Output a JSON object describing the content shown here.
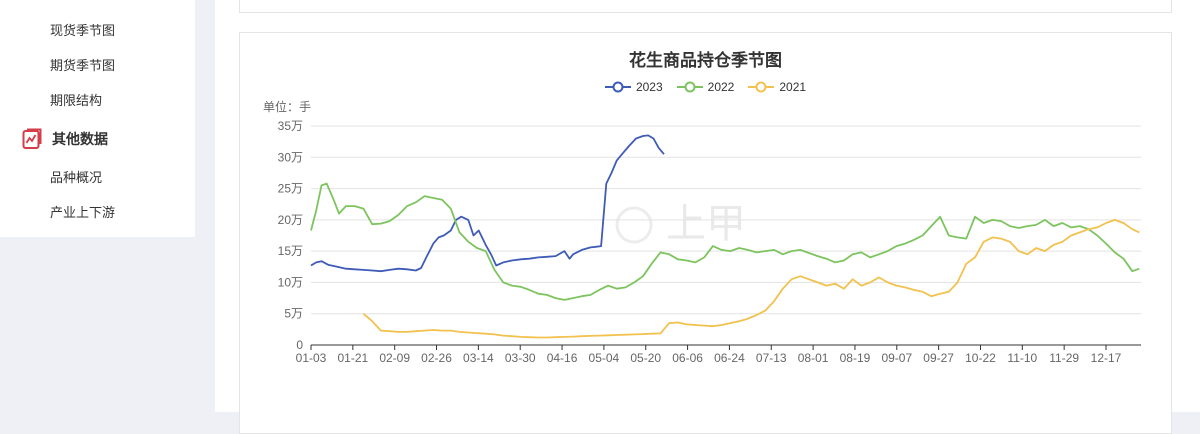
{
  "sidebar": {
    "items_top": [
      "现货季节图",
      "期货季节图",
      "期限结构"
    ],
    "group_label": "其他数据",
    "items_bottom": [
      "品种概况",
      "产业上下游"
    ]
  },
  "chart": {
    "watermark": "上甲"
  },
  "chart_data": {
    "type": "line",
    "title": "花生商品持仓季节图",
    "unit_label": "单位：手",
    "xlabel": "",
    "ylabel": "",
    "ylim": [
      0,
      350000
    ],
    "y_ticks": [
      "0",
      "5万",
      "10万",
      "15万",
      "20万",
      "25万",
      "30万",
      "35万"
    ],
    "x_tick_labels": [
      "01-03",
      "01-21",
      "02-09",
      "02-26",
      "03-14",
      "03-30",
      "04-16",
      "05-04",
      "05-20",
      "06-06",
      "06-24",
      "07-13",
      "08-01",
      "08-19",
      "09-07",
      "09-27",
      "10-22",
      "11-10",
      "11-29",
      "12-17"
    ],
    "grid": true,
    "legend_position": "top-center",
    "series": [
      {
        "name": "2023",
        "color": "#3e5bb8",
        "points": [
          [
            0,
            127000
          ],
          [
            0.3,
            132000
          ],
          [
            0.6,
            134000
          ],
          [
            1,
            128000
          ],
          [
            1.5,
            125000
          ],
          [
            2,
            122000
          ],
          [
            2.5,
            121000
          ],
          [
            3,
            120000
          ],
          [
            3.5,
            119000
          ],
          [
            4,
            118000
          ],
          [
            4.5,
            120000
          ],
          [
            5,
            122000
          ],
          [
            5.5,
            121000
          ],
          [
            6,
            119000
          ],
          [
            6.3,
            123000
          ],
          [
            6.6,
            140000
          ],
          [
            7,
            162000
          ],
          [
            7.3,
            172000
          ],
          [
            7.6,
            175000
          ],
          [
            8,
            183000
          ],
          [
            8.3,
            200000
          ],
          [
            8.6,
            205000
          ],
          [
            9,
            200000
          ],
          [
            9.3,
            175000
          ],
          [
            9.6,
            183000
          ],
          [
            10,
            160000
          ],
          [
            10.3,
            145000
          ],
          [
            10.6,
            127000
          ],
          [
            11,
            132000
          ],
          [
            11.5,
            135000
          ],
          [
            12,
            137000
          ],
          [
            12.5,
            138000
          ],
          [
            13,
            140000
          ],
          [
            13.5,
            141000
          ],
          [
            14,
            142000
          ],
          [
            14.5,
            150000
          ],
          [
            14.8,
            138000
          ],
          [
            15,
            145000
          ],
          [
            15.5,
            152000
          ],
          [
            16,
            156000
          ],
          [
            16.3,
            157000
          ],
          [
            16.6,
            158000
          ],
          [
            16.9,
            258000
          ],
          [
            17.2,
            275000
          ],
          [
            17.5,
            295000
          ],
          [
            17.8,
            305000
          ],
          [
            18.2,
            318000
          ],
          [
            18.6,
            330000
          ],
          [
            19,
            334000
          ],
          [
            19.3,
            335000
          ],
          [
            19.6,
            330000
          ],
          [
            19.9,
            315000
          ],
          [
            20.2,
            305000
          ]
        ]
      },
      {
        "name": "2022",
        "color": "#7dc45f",
        "points": [
          [
            0,
            183000
          ],
          [
            0.3,
            215000
          ],
          [
            0.6,
            255000
          ],
          [
            0.9,
            258000
          ],
          [
            1.3,
            232000
          ],
          [
            1.6,
            210000
          ],
          [
            2,
            222000
          ],
          [
            2.5,
            222000
          ],
          [
            3,
            218000
          ],
          [
            3.5,
            193000
          ],
          [
            4,
            194000
          ],
          [
            4.5,
            198000
          ],
          [
            5,
            208000
          ],
          [
            5.5,
            222000
          ],
          [
            6,
            228000
          ],
          [
            6.5,
            238000
          ],
          [
            7,
            235000
          ],
          [
            7.5,
            232000
          ],
          [
            8,
            218000
          ],
          [
            8.5,
            180000
          ],
          [
            9,
            165000
          ],
          [
            9.5,
            155000
          ],
          [
            10,
            150000
          ],
          [
            10.5,
            120000
          ],
          [
            11,
            100000
          ],
          [
            11.5,
            95000
          ],
          [
            12,
            93000
          ],
          [
            12.5,
            88000
          ],
          [
            13,
            82000
          ],
          [
            13.5,
            80000
          ],
          [
            14,
            75000
          ],
          [
            14.5,
            72000
          ],
          [
            15,
            75000
          ],
          [
            15.5,
            78000
          ],
          [
            16,
            80000
          ],
          [
            16.5,
            88000
          ],
          [
            17,
            95000
          ],
          [
            17.5,
            90000
          ],
          [
            18,
            92000
          ],
          [
            18.5,
            100000
          ],
          [
            19,
            110000
          ],
          [
            19.5,
            130000
          ],
          [
            20,
            148000
          ],
          [
            20.5,
            145000
          ],
          [
            21,
            137000
          ],
          [
            21.5,
            135000
          ],
          [
            22,
            132000
          ],
          [
            22.5,
            140000
          ],
          [
            23,
            158000
          ],
          [
            23.5,
            152000
          ],
          [
            24,
            150000
          ],
          [
            24.5,
            155000
          ],
          [
            25,
            152000
          ],
          [
            25.5,
            148000
          ],
          [
            26,
            150000
          ],
          [
            26.5,
            152000
          ],
          [
            27,
            145000
          ],
          [
            27.5,
            150000
          ],
          [
            28,
            152000
          ],
          [
            28.5,
            147000
          ],
          [
            29,
            142000
          ],
          [
            29.5,
            138000
          ],
          [
            30,
            132000
          ],
          [
            30.5,
            135000
          ],
          [
            31,
            145000
          ],
          [
            31.5,
            148000
          ],
          [
            32,
            140000
          ],
          [
            32.5,
            145000
          ],
          [
            33,
            150000
          ],
          [
            33.5,
            158000
          ],
          [
            34,
            162000
          ],
          [
            34.5,
            168000
          ],
          [
            35,
            175000
          ],
          [
            35.5,
            190000
          ],
          [
            36,
            205000
          ],
          [
            36.5,
            175000
          ],
          [
            37,
            172000
          ],
          [
            37.5,
            170000
          ],
          [
            38,
            205000
          ],
          [
            38.5,
            195000
          ],
          [
            39,
            200000
          ],
          [
            39.5,
            198000
          ],
          [
            40,
            190000
          ],
          [
            40.5,
            187000
          ],
          [
            41,
            190000
          ],
          [
            41.5,
            192000
          ],
          [
            42,
            200000
          ],
          [
            42.5,
            190000
          ],
          [
            43,
            195000
          ],
          [
            43.5,
            188000
          ],
          [
            44,
            190000
          ],
          [
            44.5,
            185000
          ],
          [
            45,
            175000
          ],
          [
            45.5,
            162000
          ],
          [
            46,
            148000
          ],
          [
            46.5,
            138000
          ],
          [
            47,
            118000
          ],
          [
            47.4,
            122000
          ]
        ]
      },
      {
        "name": "2021",
        "color": "#f2c14e",
        "points": [
          [
            3,
            50000
          ],
          [
            3.5,
            38000
          ],
          [
            4,
            23000
          ],
          [
            4.5,
            22000
          ],
          [
            5,
            21000
          ],
          [
            5.5,
            21000
          ],
          [
            6,
            22000
          ],
          [
            6.5,
            23000
          ],
          [
            7,
            24000
          ],
          [
            7.5,
            23000
          ],
          [
            8,
            23000
          ],
          [
            8.5,
            21000
          ],
          [
            9,
            20000
          ],
          [
            9.5,
            19000
          ],
          [
            10,
            18000
          ],
          [
            10.5,
            17000
          ],
          [
            11,
            15000
          ],
          [
            11.5,
            14000
          ],
          [
            12,
            13000
          ],
          [
            12.5,
            12500
          ],
          [
            13,
            12000
          ],
          [
            13.5,
            12000
          ],
          [
            14,
            12500
          ],
          [
            14.5,
            13000
          ],
          [
            15,
            13500
          ],
          [
            15.5,
            14000
          ],
          [
            16,
            14500
          ],
          [
            16.5,
            15000
          ],
          [
            17,
            15500
          ],
          [
            17.5,
            16000
          ],
          [
            18,
            16500
          ],
          [
            18.5,
            17000
          ],
          [
            19,
            17500
          ],
          [
            19.5,
            18000
          ],
          [
            20,
            18500
          ],
          [
            20.5,
            35000
          ],
          [
            21,
            36000
          ],
          [
            21.5,
            33000
          ],
          [
            22,
            32000
          ],
          [
            22.5,
            31000
          ],
          [
            23,
            30000
          ],
          [
            23.5,
            32000
          ],
          [
            24,
            35000
          ],
          [
            24.5,
            38000
          ],
          [
            25,
            42000
          ],
          [
            25.5,
            48000
          ],
          [
            26,
            55000
          ],
          [
            26.5,
            70000
          ],
          [
            27,
            90000
          ],
          [
            27.5,
            105000
          ],
          [
            28,
            110000
          ],
          [
            28.5,
            105000
          ],
          [
            29,
            100000
          ],
          [
            29.5,
            95000
          ],
          [
            30,
            98000
          ],
          [
            30.5,
            90000
          ],
          [
            31,
            105000
          ],
          [
            31.5,
            95000
          ],
          [
            32,
            100000
          ],
          [
            32.5,
            108000
          ],
          [
            33,
            100000
          ],
          [
            33.5,
            95000
          ],
          [
            34,
            92000
          ],
          [
            34.5,
            88000
          ],
          [
            35,
            85000
          ],
          [
            35.5,
            78000
          ],
          [
            36,
            82000
          ],
          [
            36.5,
            85000
          ],
          [
            37,
            100000
          ],
          [
            37.5,
            130000
          ],
          [
            38,
            140000
          ],
          [
            38.5,
            165000
          ],
          [
            39,
            172000
          ],
          [
            39.5,
            170000
          ],
          [
            40,
            165000
          ],
          [
            40.5,
            150000
          ],
          [
            41,
            145000
          ],
          [
            41.5,
            155000
          ],
          [
            42,
            150000
          ],
          [
            42.5,
            160000
          ],
          [
            43,
            165000
          ],
          [
            43.5,
            175000
          ],
          [
            44,
            180000
          ],
          [
            44.5,
            185000
          ],
          [
            45,
            188000
          ],
          [
            45.5,
            195000
          ],
          [
            46,
            200000
          ],
          [
            46.5,
            195000
          ],
          [
            47,
            185000
          ],
          [
            47.4,
            180000
          ]
        ]
      }
    ]
  }
}
